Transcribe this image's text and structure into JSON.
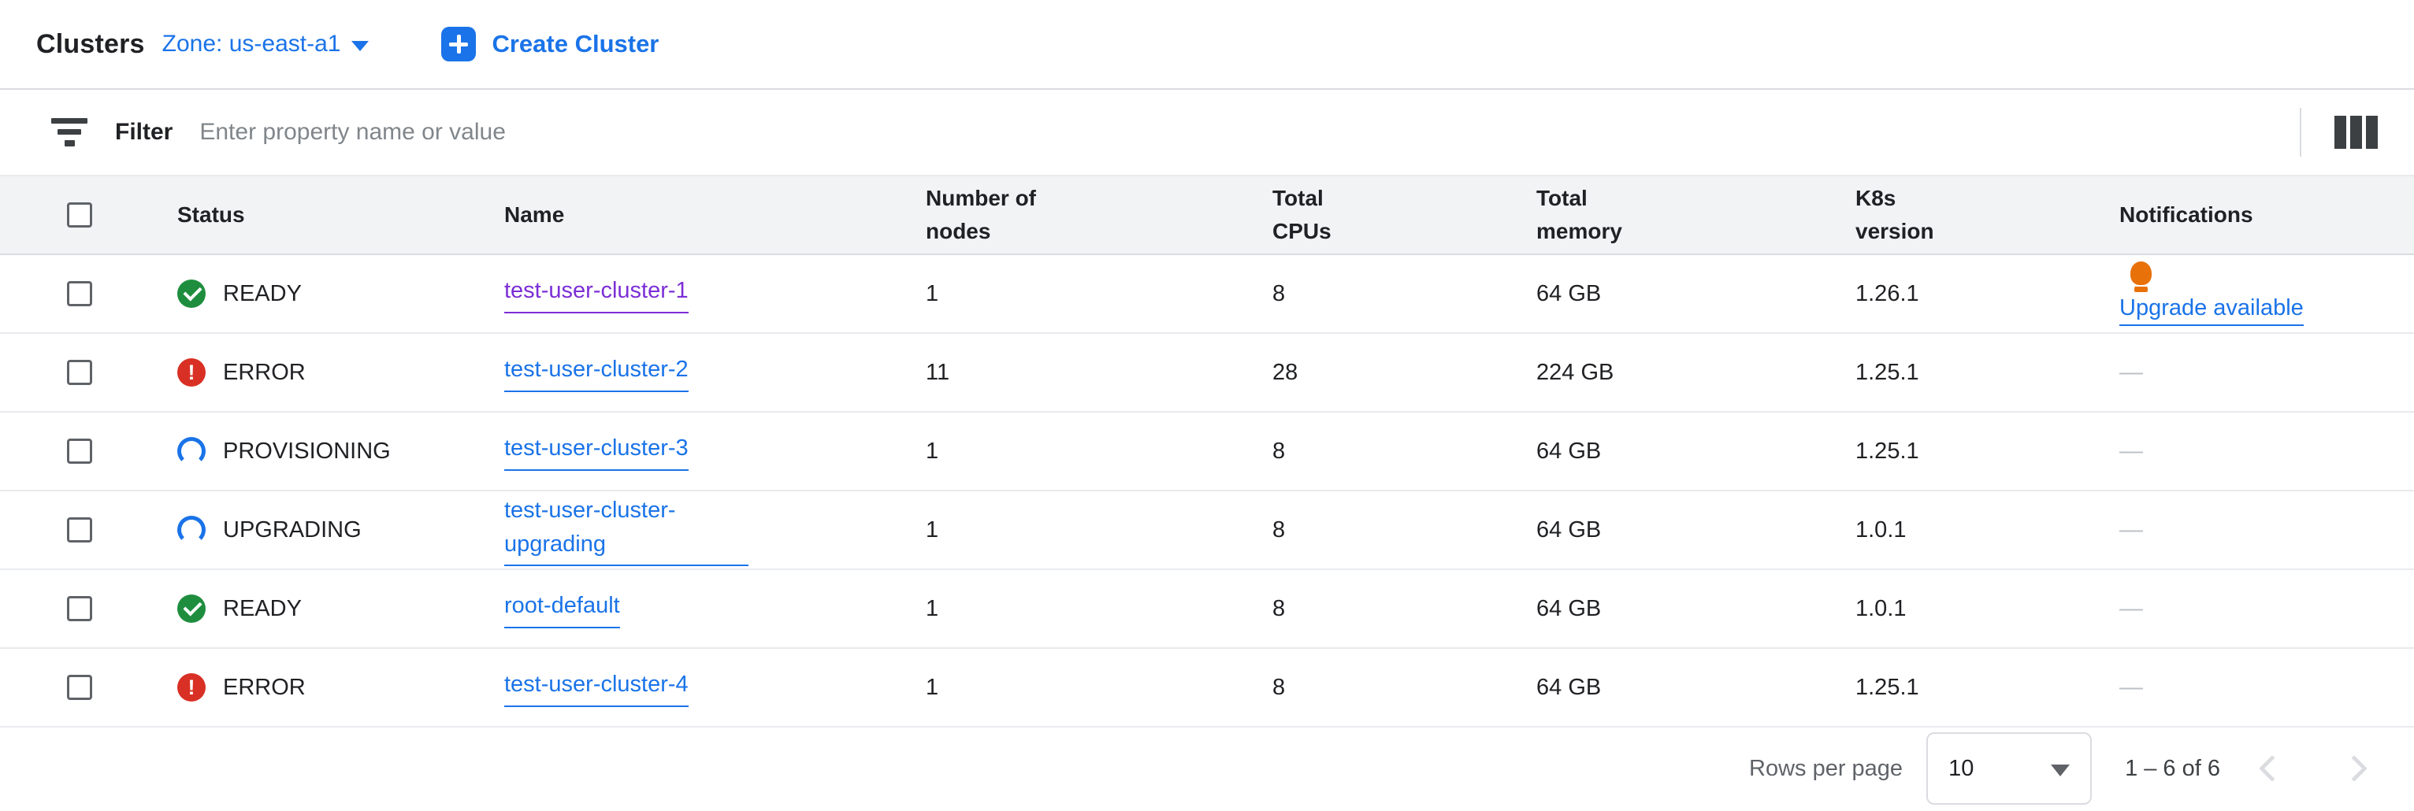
{
  "header": {
    "title": "Clusters",
    "zone_label": "Zone: us-east-a1",
    "create_button": "Create Cluster"
  },
  "filter": {
    "label": "Filter",
    "placeholder": "Enter property name or value"
  },
  "table": {
    "columns": [
      "Status",
      "Name",
      "Number of nodes",
      "Total CPUs",
      "Total memory",
      "K8s version",
      "Notifications"
    ],
    "rows": [
      {
        "status": "READY",
        "status_kind": "ready",
        "name": "test-user-cluster-1",
        "visited": true,
        "wrap": false,
        "nodes": "1",
        "cpus": "8",
        "memory": "64 GB",
        "k8s": "1.26.1",
        "notification_kind": "upgrade",
        "notification": "Upgrade available"
      },
      {
        "status": "ERROR",
        "status_kind": "error",
        "name": "test-user-cluster-2",
        "visited": false,
        "wrap": false,
        "nodes": "11",
        "cpus": "28",
        "memory": "224 GB",
        "k8s": "1.25.1",
        "notification_kind": "none",
        "notification": "—"
      },
      {
        "status": "PROVISIONING",
        "status_kind": "spinner",
        "name": "test-user-cluster-3",
        "visited": false,
        "wrap": false,
        "nodes": "1",
        "cpus": "8",
        "memory": "64 GB",
        "k8s": "1.25.1",
        "notification_kind": "none",
        "notification": "—"
      },
      {
        "status": "UPGRADING",
        "status_kind": "spinner",
        "name": "test-user-cluster-upgrading",
        "visited": false,
        "wrap": true,
        "nodes": "1",
        "cpus": "8",
        "memory": "64 GB",
        "k8s": "1.0.1",
        "notification_kind": "none",
        "notification": "—"
      },
      {
        "status": "READY",
        "status_kind": "ready",
        "name": "root-default",
        "visited": false,
        "wrap": false,
        "nodes": "1",
        "cpus": "8",
        "memory": "64 GB",
        "k8s": "1.0.1",
        "notification_kind": "none",
        "notification": "—"
      },
      {
        "status": "ERROR",
        "status_kind": "error",
        "name": "test-user-cluster-4",
        "visited": false,
        "wrap": false,
        "nodes": "1",
        "cpus": "8",
        "memory": "64 GB",
        "k8s": "1.25.1",
        "notification_kind": "none",
        "notification": "—"
      }
    ]
  },
  "footer": {
    "rows_per_page_label": "Rows per page",
    "rows_per_page_value": "10",
    "range_label": "1 – 6 of 6"
  },
  "icons": {
    "filter": "filter-funnel-icon",
    "columns": "column-display-icon",
    "create": "plus-icon",
    "ready": "green-check-circle-icon",
    "error": "red-exclamation-circle-icon",
    "in_progress": "blue-spinner-icon",
    "upgrade": "lightbulb-icon"
  },
  "colors": {
    "accent_blue": "#1a73e8",
    "ready_green": "#1e8e3e",
    "error_red": "#d93025",
    "bulb_orange": "#e8710a",
    "visited_purple": "#7c2ed6",
    "text_primary": "#202124",
    "text_secondary": "#5f6368",
    "border": "#dadce0"
  }
}
